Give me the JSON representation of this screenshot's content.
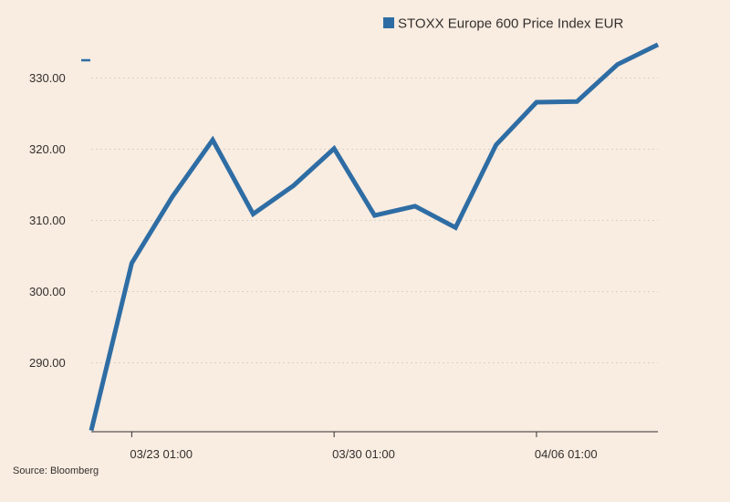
{
  "chart_data": {
    "type": "line",
    "x": [
      "03/20",
      "03/23",
      "03/24",
      "03/25",
      "03/26",
      "03/27",
      "03/30",
      "03/31",
      "04/01",
      "04/02",
      "04/03",
      "04/06",
      "04/07",
      "04/08",
      "04/09"
    ],
    "series": [
      {
        "name": "STOXX Europe 600 Price Index EUR",
        "color": "#2e6da4",
        "values": [
          280.5,
          304.0,
          313.3,
          321.3,
          310.9,
          314.9,
          320.1,
          310.7,
          312.0,
          309.0,
          320.6,
          326.6,
          326.7,
          331.9,
          334.7
        ]
      }
    ],
    "x_tick_labels": [
      "03/23 01:00",
      "03/30 01:00",
      "04/06 01:00"
    ],
    "x_tick_index": [
      1,
      6,
      11
    ],
    "y_ticks": [
      290,
      300,
      310,
      320,
      330
    ],
    "y_tick_labels": [
      "290.00",
      "300.00",
      "310.00",
      "320.00",
      "330.00"
    ],
    "ylim": [
      280.5,
      335.5
    ],
    "grid": true,
    "legend_position": "top-right",
    "source": "Source: Bloomberg"
  }
}
